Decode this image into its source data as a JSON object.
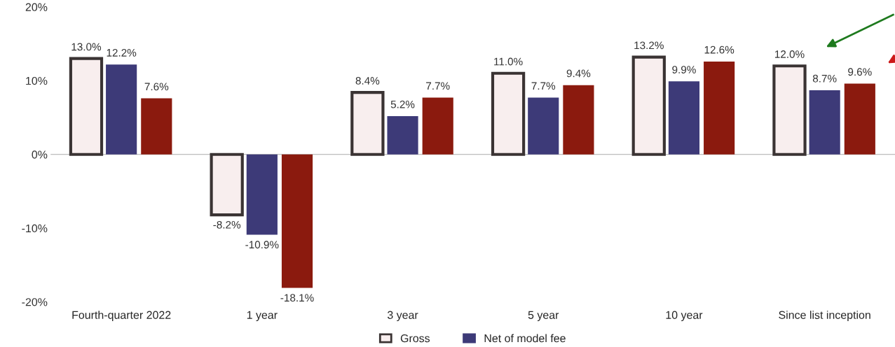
{
  "chart_data": {
    "type": "bar",
    "categories": [
      "Fourth-quarter 2022",
      "1 year",
      "3 year",
      "5 year",
      "10 year",
      "Since list inception"
    ],
    "series": [
      {
        "name": "Gross",
        "color": "#f8eeee",
        "values": [
          13.0,
          -8.2,
          8.4,
          11.0,
          13.2,
          12.0
        ],
        "value_labels": [
          "13.0%",
          "-8.2%",
          "8.4%",
          "11.0%",
          "13.2%",
          "12.0%"
        ]
      },
      {
        "name": "Net of model fee",
        "color": "#3d3a78",
        "values": [
          12.2,
          -10.9,
          5.2,
          7.7,
          9.9,
          8.7
        ],
        "value_labels": [
          "12.2%",
          "-10.9%",
          "5.2%",
          "7.7%",
          "9.9%",
          "8.7%"
        ]
      },
      {
        "color": "#8b1a0e",
        "values": [
          7.6,
          -18.1,
          7.7,
          9.4,
          12.6,
          9.6
        ],
        "value_labels": [
          "7.6%",
          "-18.1%",
          "7.7%",
          "9.4%",
          "12.6%",
          "9.6%"
        ]
      }
    ],
    "ylim": [
      -20,
      20
    ],
    "yticks": [
      {
        "value": -20,
        "label": "-20%"
      },
      {
        "value": -10,
        "label": "-10%"
      },
      {
        "value": 0,
        "label": "0%"
      },
      {
        "value": 10,
        "label": "10%"
      },
      {
        "value": 20,
        "label": "20%"
      }
    ],
    "legend": "bottom"
  }
}
